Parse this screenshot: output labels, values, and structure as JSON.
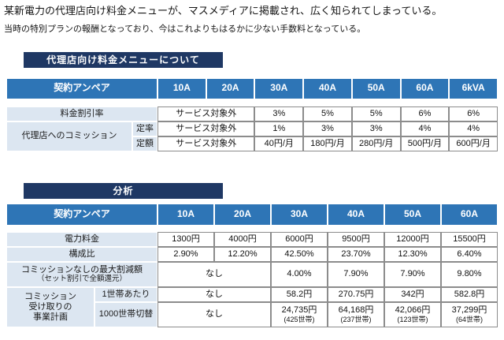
{
  "colors": {
    "title_bar": "#1f3864",
    "table_header": "#2e75b6",
    "label_cell": "#dce6f1"
  },
  "intro": {
    "line1": "某新電力の代理店向け料金メニューが、マスメディアに掲載され、広く知られてしまっている。",
    "line2": "当時の特別プランの報酬となっており、今はこれよりもはるかに少ない手数料となっている。"
  },
  "menu": {
    "title": "代理店向け料金メニューについて",
    "corner": "契約アンペア",
    "cols": [
      "10A",
      "20A",
      "30A",
      "40A",
      "50A",
      "60A",
      "6kVA"
    ],
    "discount": {
      "label": "料金割引率",
      "excluded": "サービス対象外",
      "values": [
        "3%",
        "5%",
        "5%",
        "6%",
        "6%"
      ]
    },
    "commission": {
      "label": "代理店へのコミッション",
      "rate": {
        "label": "定率",
        "excluded": "サービス対象外",
        "values": [
          "1%",
          "3%",
          "3%",
          "4%",
          "4%"
        ]
      },
      "fixed": {
        "label": "定額",
        "excluded": "サービス対象外",
        "values": [
          "40円/月",
          "180円/月",
          "280円/月",
          "500円/月",
          "600円/月"
        ]
      }
    }
  },
  "analysis": {
    "title": "分析",
    "corner": "契約アンペア",
    "cols": [
      "10A",
      "20A",
      "30A",
      "40A",
      "50A",
      "60A"
    ],
    "power_fee": {
      "label": "電力料金",
      "values": [
        "1300円",
        "4000円",
        "6000円",
        "9500円",
        "12000円",
        "15500円"
      ]
    },
    "composition": {
      "label": "構成比",
      "values": [
        "2.90%",
        "12.20%",
        "42.50%",
        "23.70%",
        "12.30%",
        "6.40%"
      ]
    },
    "max_discount": {
      "label_line1": "コミッションなしの最大割減額",
      "label_line2": "（セット割引で全額還元）",
      "none": "なし",
      "values": [
        "4.00%",
        "7.90%",
        "7.90%",
        "9.80%"
      ]
    },
    "business_plan": {
      "label_line1": "コミッション",
      "label_line2": "受け取りの",
      "label_line3": "事業計画",
      "per_household": {
        "label": "1世帯あたり",
        "none": "なし",
        "values": [
          "58.2円",
          "270.75円",
          "342円",
          "582.8円"
        ]
      },
      "per_1000": {
        "label": "1000世帯切替",
        "none": "なし",
        "values": [
          "24,735円",
          "64,168円",
          "42,066円",
          "37,299円"
        ],
        "subvalues": [
          "(425世帯)",
          "(237世帯)",
          "(123世帯)",
          "(64世帯)"
        ]
      }
    }
  }
}
